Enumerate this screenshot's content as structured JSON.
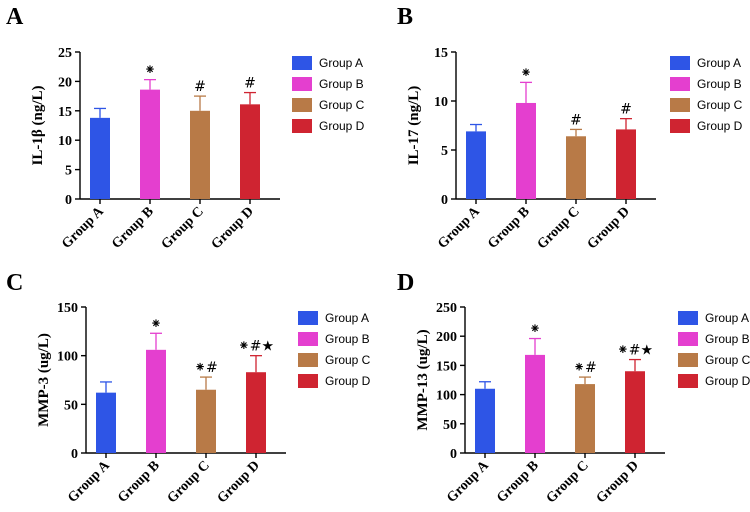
{
  "colors": {
    "Group A": "#2e55e6",
    "Group B": "#e43fcf",
    "Group C": "#b87a47",
    "Group D": "#cf2431"
  },
  "chart_data": [
    {
      "panel": "A",
      "type": "bar",
      "categories": [
        "Group A",
        "Group B",
        "Group C",
        "Group D"
      ],
      "values": [
        13.8,
        18.6,
        15.0,
        16.1
      ],
      "errors": [
        1.6,
        1.7,
        2.5,
        2.0
      ],
      "annotations": [
        "",
        "⁕",
        "#",
        "#"
      ],
      "ylabel": "IL-1β (ng/L)",
      "ylim": [
        0,
        25
      ],
      "yticks": [
        0,
        5,
        10,
        15,
        20,
        25
      ],
      "legend": [
        "Group A",
        "Group B",
        "Group C",
        "Group D"
      ]
    },
    {
      "panel": "B",
      "type": "bar",
      "categories": [
        "Group A",
        "Group B",
        "Group C",
        "Group D"
      ],
      "values": [
        6.9,
        9.8,
        6.4,
        7.1
      ],
      "errors": [
        0.7,
        2.1,
        0.7,
        1.1
      ],
      "annotations": [
        "",
        "⁕",
        "#",
        "#"
      ],
      "ylabel": "IL-17 (ng/L)",
      "ylim": [
        0,
        15
      ],
      "yticks": [
        0,
        5,
        10,
        15
      ],
      "legend": [
        "Group A",
        "Group B",
        "Group C",
        "Group D"
      ]
    },
    {
      "panel": "C",
      "type": "bar",
      "categories": [
        "Group A",
        "Group B",
        "Group C",
        "Group D"
      ],
      "values": [
        62,
        106,
        65,
        83
      ],
      "errors": [
        11,
        17,
        13,
        17
      ],
      "annotations": [
        "",
        "⁕",
        "⁕#",
        "⁕#★"
      ],
      "ylabel": "MMP-3 (ug/L)",
      "ylim": [
        0,
        150
      ],
      "yticks": [
        0,
        50,
        100,
        150
      ],
      "legend": [
        "Group A",
        "Group B",
        "Group C",
        "Group D"
      ]
    },
    {
      "panel": "D",
      "type": "bar",
      "categories": [
        "Group A",
        "Group B",
        "Group C",
        "Group D"
      ],
      "values": [
        110,
        168,
        118,
        140
      ],
      "errors": [
        12,
        28,
        12,
        20
      ],
      "annotations": [
        "",
        "⁕",
        "⁕#",
        "⁕#★"
      ],
      "ylabel": "MMP-13 (ug/L)",
      "ylim": [
        0,
        250
      ],
      "yticks": [
        0,
        50,
        100,
        150,
        200,
        250
      ],
      "legend": [
        "Group A",
        "Group B",
        "Group C",
        "Group D"
      ]
    }
  ]
}
